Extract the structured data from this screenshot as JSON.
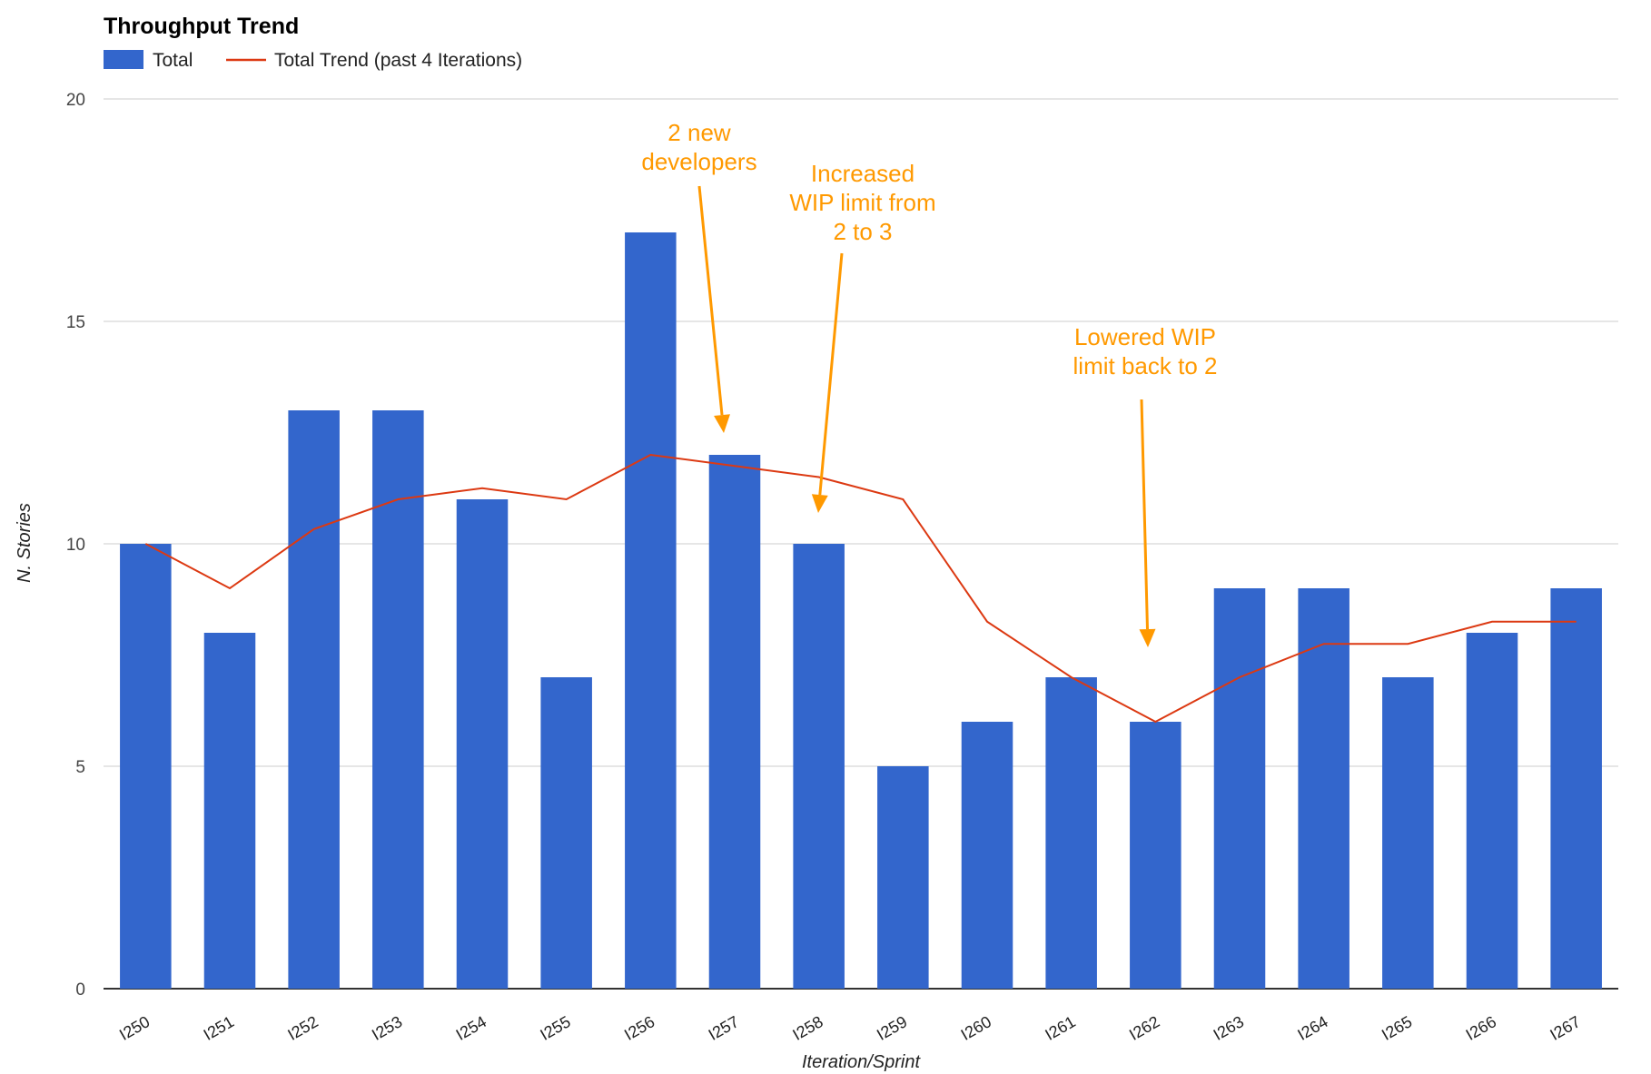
{
  "chart_data": {
    "type": "bar",
    "title": "Throughput Trend",
    "xlabel": "Iteration/Sprint",
    "ylabel": "N. Stories",
    "ylim": [
      0,
      20
    ],
    "yticks": [
      0,
      5,
      10,
      15,
      20
    ],
    "grid": true,
    "legend_position": "top-left",
    "categories": [
      "I250",
      "I251",
      "I252",
      "I253",
      "I254",
      "I255",
      "I256",
      "I257",
      "I258",
      "I259",
      "I260",
      "I261",
      "I262",
      "I263",
      "I264",
      "I265",
      "I266",
      "I267"
    ],
    "series": [
      {
        "name": "Total",
        "type": "bar",
        "color": "#3366CC",
        "values": [
          10,
          8,
          13,
          13,
          11,
          7,
          17,
          12,
          10,
          5,
          6,
          7,
          6,
          9,
          9,
          7,
          8,
          9
        ]
      },
      {
        "name": "Total Trend (past 4 Iterations)",
        "type": "line",
        "color": "#DC3912",
        "values": [
          10,
          9,
          10.33,
          11,
          11.25,
          11,
          12,
          11.75,
          11.5,
          11,
          8.25,
          7,
          6,
          7,
          7.75,
          7.75,
          8.25,
          8.25
        ]
      }
    ],
    "annotations": [
      {
        "lines": [
          "2 new",
          "developers"
        ],
        "target": "I257",
        "color": "#FF9900"
      },
      {
        "lines": [
          "Increased",
          "WIP limit from",
          "2 to 3"
        ],
        "target": "I258",
        "color": "#FF9900"
      },
      {
        "lines": [
          "Lowered WIP",
          "limit back to 2"
        ],
        "target": "I262",
        "color": "#FF9900"
      }
    ]
  }
}
